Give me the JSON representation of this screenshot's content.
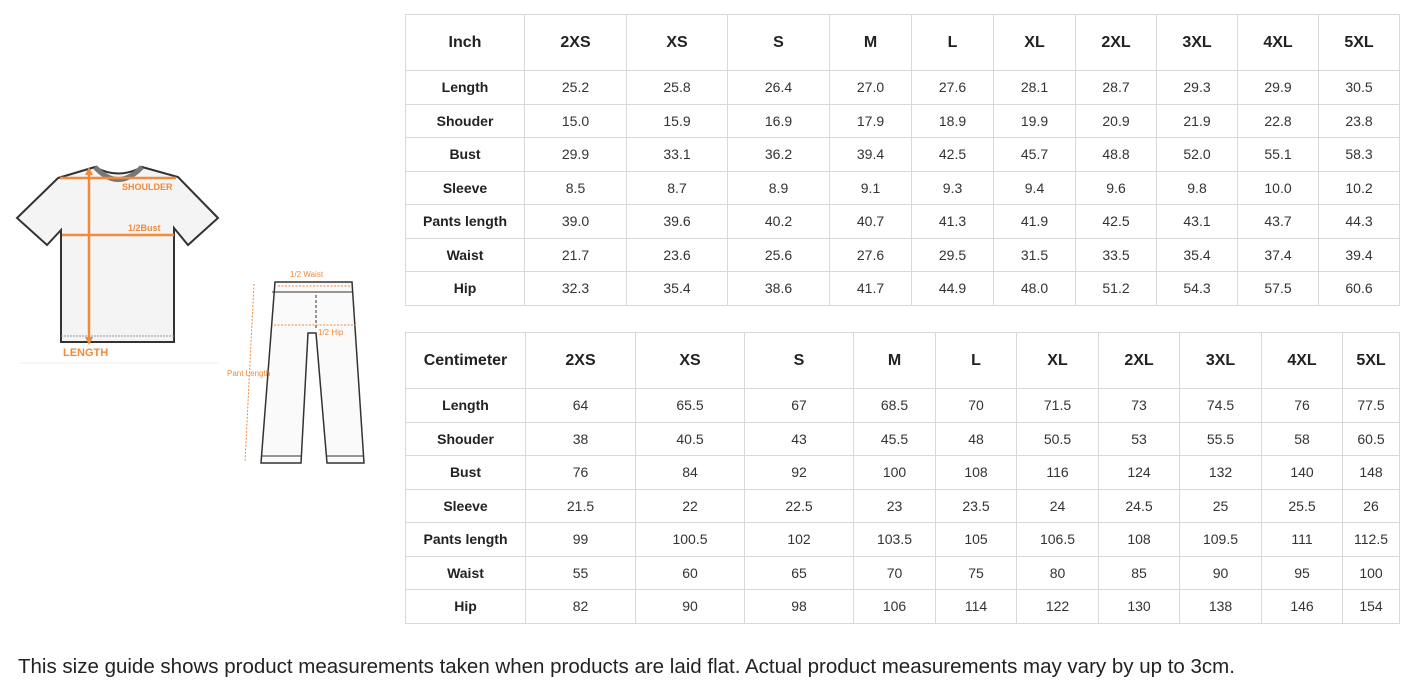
{
  "illustration": {
    "shirt_labels": {
      "shoulder": "SHOULDER",
      "bust": "1/2Bust",
      "length": "LENGTH"
    },
    "pants_labels": {
      "waist": "1/2 Waist",
      "hip": "1/2 Hip",
      "length": "Pant Length"
    },
    "accent_color": "#f08a3c"
  },
  "inch_table": {
    "headers": [
      "Inch",
      "2XS",
      "XS",
      "S",
      "M",
      "L",
      "XL",
      "2XL",
      "3XL",
      "4XL",
      "5XL"
    ],
    "rows": [
      [
        "Length",
        "25.2",
        "25.8",
        "26.4",
        "27.0",
        "27.6",
        "28.1",
        "28.7",
        "29.3",
        "29.9",
        "30.5"
      ],
      [
        "Shouder",
        "15.0",
        "15.9",
        "16.9",
        "17.9",
        "18.9",
        "19.9",
        "20.9",
        "21.9",
        "22.8",
        "23.8"
      ],
      [
        "Bust",
        "29.9",
        "33.1",
        "36.2",
        "39.4",
        "42.5",
        "45.7",
        "48.8",
        "52.0",
        "55.1",
        "58.3"
      ],
      [
        "Sleeve",
        "8.5",
        "8.7",
        "8.9",
        "9.1",
        "9.3",
        "9.4",
        "9.6",
        "9.8",
        "10.0",
        "10.2"
      ],
      [
        "Pants length",
        "39.0",
        "39.6",
        "40.2",
        "40.7",
        "41.3",
        "41.9",
        "42.5",
        "43.1",
        "43.7",
        "44.3"
      ],
      [
        "Waist",
        "21.7",
        "23.6",
        "25.6",
        "27.6",
        "29.5",
        "31.5",
        "33.5",
        "35.4",
        "37.4",
        "39.4"
      ],
      [
        "Hip",
        "32.3",
        "35.4",
        "38.6",
        "41.7",
        "44.9",
        "48.0",
        "51.2",
        "54.3",
        "57.5",
        "60.6"
      ]
    ]
  },
  "cm_table": {
    "headers": [
      "Centimeter",
      "2XS",
      "XS",
      "S",
      "M",
      "L",
      "XL",
      "2XL",
      "3XL",
      "4XL",
      "5XL"
    ],
    "rows": [
      [
        "Length",
        "64",
        "65.5",
        "67",
        "68.5",
        "70",
        "71.5",
        "73",
        "74.5",
        "76",
        "77.5"
      ],
      [
        "Shouder",
        "38",
        "40.5",
        "43",
        "45.5",
        "48",
        "50.5",
        "53",
        "55.5",
        "58",
        "60.5"
      ],
      [
        "Bust",
        "76",
        "84",
        "92",
        "100",
        "108",
        "116",
        "124",
        "132",
        "140",
        "148"
      ],
      [
        "Sleeve",
        "21.5",
        "22",
        "22.5",
        "23",
        "23.5",
        "24",
        "24.5",
        "25",
        "25.5",
        "26"
      ],
      [
        "Pants length",
        "99",
        "100.5",
        "102",
        "103.5",
        "105",
        "106.5",
        "108",
        "109.5",
        "111",
        "112.5"
      ],
      [
        "Waist",
        "55",
        "60",
        "65",
        "70",
        "75",
        "80",
        "85",
        "90",
        "95",
        "100"
      ],
      [
        "Hip",
        "82",
        "90",
        "98",
        "106",
        "114",
        "122",
        "130",
        "138",
        "146",
        "154"
      ]
    ]
  },
  "footer_note": "This size guide shows product measurements taken when products are laid flat. Actual product measurements may vary by up to 3cm."
}
